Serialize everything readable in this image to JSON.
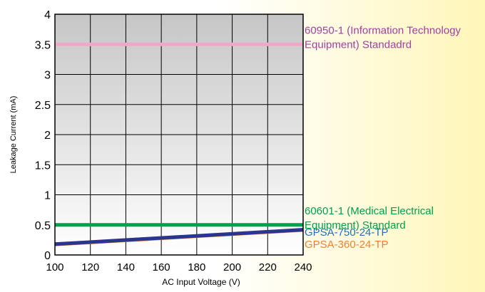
{
  "chart_data": {
    "type": "line",
    "xlabel": "AC Input Voltage (V)",
    "ylabel": "Leakage Current (mA)",
    "xlim": [
      100,
      240
    ],
    "ylim": [
      0,
      4
    ],
    "x_ticks": [
      100,
      120,
      140,
      160,
      180,
      200,
      220,
      240
    ],
    "y_ticks": [
      0,
      0.5,
      1,
      1.5,
      2,
      2.5,
      3,
      3.5,
      4
    ],
    "y_tick_labels": [
      "0",
      "0.5",
      "1",
      "1.5",
      "2",
      "2.5",
      "3",
      "3.5",
      "4"
    ],
    "grid": true,
    "reference_lines": [
      {
        "y": 3.5,
        "label_lines": [
          "60950-1 (Information Technology",
          "Equipment) Standadrd"
        ],
        "color": "#f0a8c8",
        "label_color": "#a040a0"
      },
      {
        "y": 0.5,
        "label_lines": [
          "60601-1 (Medical Electrical",
          "Equipment) Standard"
        ],
        "color": "#00a050",
        "label_color": "#00a050"
      }
    ],
    "series": [
      {
        "name": "GPSA-750-24-TP",
        "x": [
          100,
          240
        ],
        "y": [
          0.18,
          0.42
        ],
        "color": "#2a3590"
      },
      {
        "name": "GPSA-360-24-TP",
        "x": [
          100,
          240
        ],
        "y": [
          0.16,
          0.4
        ],
        "color": "#f08030"
      }
    ]
  }
}
